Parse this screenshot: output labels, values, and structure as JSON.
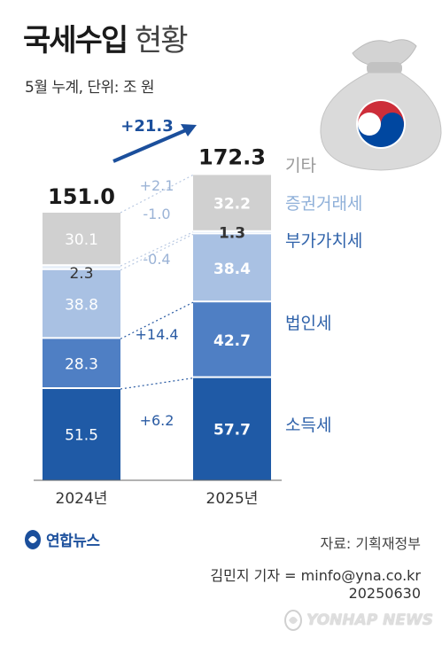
{
  "header": {
    "title_bold": "국세수입",
    "title_light": "현황",
    "subtitle": "5월 누계, 단위: 조 원"
  },
  "chart_data": {
    "type": "bar",
    "stacked": true,
    "categories": [
      "2024년",
      "2025년"
    ],
    "totals": [
      151.0,
      172.3
    ],
    "total_labels": [
      "151.0",
      "172.3"
    ],
    "change_total": "+21.3",
    "series": [
      {
        "name": "소득세",
        "values": [
          51.5,
          57.7
        ],
        "labels": [
          "51.5",
          "57.7"
        ],
        "change": "+6.2",
        "color": "#1f5aa6"
      },
      {
        "name": "법인세",
        "values": [
          28.3,
          42.7
        ],
        "labels": [
          "28.3",
          "42.7"
        ],
        "change": "+14.4",
        "color": "#4f7fc4"
      },
      {
        "name": "부가가치세",
        "values": [
          38.8,
          38.4
        ],
        "labels": [
          "38.8",
          "38.4"
        ],
        "change": "-0.4",
        "color": "#a9c1e3"
      },
      {
        "name": "증권거래세",
        "values": [
          2.3,
          1.3
        ],
        "labels": [
          "2.3",
          "1.3"
        ],
        "change": "-1.0",
        "color": "#e6eef8"
      },
      {
        "name": "기타",
        "values": [
          30.1,
          32.2
        ],
        "labels": [
          "30.1",
          "32.2"
        ],
        "change": "+2.1",
        "color": "#d0d0d0"
      }
    ]
  },
  "footer": {
    "logo": "연합뉴스",
    "source": "자료: 기획재정부",
    "credit_line1": "김민지 기자 = minfo@yna.co.kr",
    "credit_line2": "20250630",
    "watermark": "YONHAP NEWS"
  },
  "colors": {
    "dark_blue": "#1f5aa6",
    "arrow_blue": "#1b4f9c",
    "text_dark": "#1a1a1a",
    "change_blue": "#2a5ba3",
    "change_light": "#9bb3d6",
    "legend_gray": "#999999",
    "legend_light_blue": "#8fb0d9",
    "legend_mid_blue": "#2f62aa"
  },
  "icons": [
    "money-bag-icon",
    "taegeuk-emblem-icon",
    "yonhap-logo-icon"
  ]
}
